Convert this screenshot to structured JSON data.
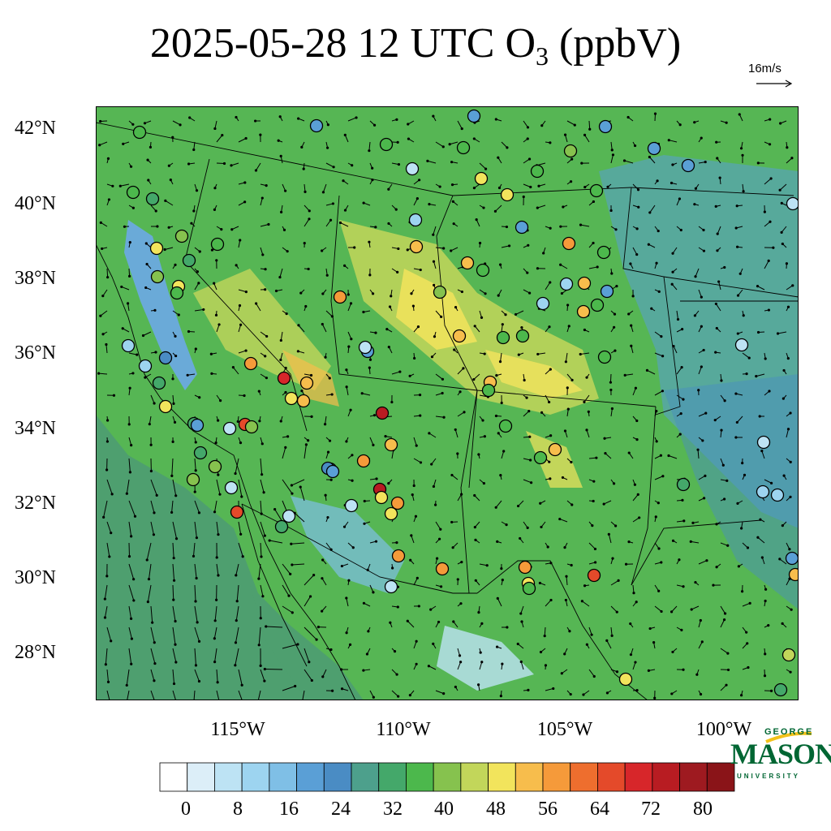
{
  "title": {
    "main": "2025-05-28 12 UTC O",
    "sub": "3",
    "units": " (ppbV)"
  },
  "vector_reference": {
    "label": "16m/s"
  },
  "lat_labels": [
    "42°N",
    "40°N",
    "38°N",
    "36°N",
    "34°N",
    "32°N",
    "30°N",
    "28°N"
  ],
  "lon_labels": [
    "115°W",
    "110°W",
    "105°W",
    "100°W"
  ],
  "colorbar": {
    "tick_labels": [
      "0",
      "8",
      "16",
      "24",
      "32",
      "40",
      "48",
      "56",
      "64",
      "72",
      "80"
    ],
    "colors": [
      "#ffffff",
      "#dceef8",
      "#bde3f4",
      "#9dd4f0",
      "#7fbfe6",
      "#5a9fd6",
      "#4a8cc4",
      "#4da08c",
      "#44a86a",
      "#4cb84c",
      "#86c24e",
      "#c2d65a",
      "#f2e45c",
      "#f7bd4c",
      "#f59a3a",
      "#ee6e2e",
      "#e44a2a",
      "#d7262a",
      "#b81c22",
      "#9e1a20",
      "#8a1418"
    ]
  },
  "logo": {
    "top": "GEORGE",
    "main": "MASON",
    "bottom": "UNIVERSITY"
  },
  "colors": {
    "ocean": "#4e9f6f",
    "land": "#56b654"
  }
}
